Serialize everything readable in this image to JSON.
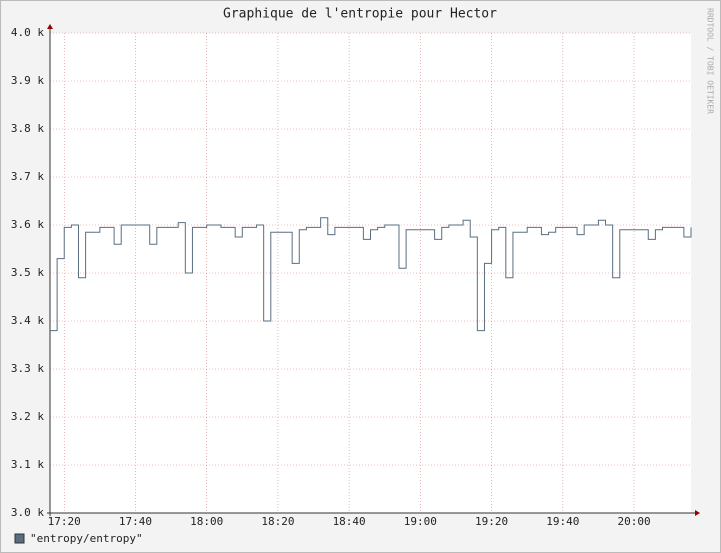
{
  "chart_data": {
    "type": "line",
    "title": "Graphique de l'entropie pour Hector",
    "watermark": "RRDTOOL / TOBI OETIKER",
    "x": [
      "17:16",
      "17:18",
      "17:20",
      "17:22",
      "17:24",
      "17:26",
      "17:28",
      "17:30",
      "17:32",
      "17:34",
      "17:36",
      "17:38",
      "17:40",
      "17:42",
      "17:44",
      "17:46",
      "17:48",
      "17:50",
      "17:52",
      "17:54",
      "17:56",
      "17:58",
      "18:00",
      "18:02",
      "18:04",
      "18:06",
      "18:08",
      "18:10",
      "18:12",
      "18:14",
      "18:16",
      "18:18",
      "18:20",
      "18:22",
      "18:24",
      "18:26",
      "18:28",
      "18:30",
      "18:32",
      "18:34",
      "18:36",
      "18:38",
      "18:40",
      "18:42",
      "18:44",
      "18:46",
      "18:48",
      "18:50",
      "18:52",
      "18:54",
      "18:56",
      "18:58",
      "19:00",
      "19:02",
      "19:04",
      "19:06",
      "19:08",
      "19:10",
      "19:12",
      "19:14",
      "19:16",
      "19:18",
      "19:20",
      "19:22",
      "19:24",
      "19:26",
      "19:28",
      "19:30",
      "19:32",
      "19:34",
      "19:36",
      "19:38",
      "19:40",
      "19:42",
      "19:44",
      "19:46",
      "19:48",
      "19:50",
      "19:52",
      "19:54",
      "19:56",
      "19:58",
      "20:00",
      "20:02",
      "20:04",
      "20:06",
      "20:08",
      "20:10",
      "20:12",
      "20:14",
      "20:16"
    ],
    "series": [
      {
        "name": "\"entropy/entropy\"",
        "color": "#5a6e80",
        "values": [
          3380,
          3530,
          3595,
          3600,
          3490,
          3585,
          3585,
          3595,
          3595,
          3560,
          3600,
          3600,
          3600,
          3600,
          3560,
          3595,
          3595,
          3595,
          3605,
          3500,
          3595,
          3595,
          3600,
          3600,
          3595,
          3595,
          3575,
          3595,
          3595,
          3600,
          3400,
          3585,
          3585,
          3585,
          3520,
          3590,
          3595,
          3595,
          3615,
          3580,
          3595,
          3595,
          3595,
          3595,
          3570,
          3590,
          3595,
          3600,
          3600,
          3510,
          3590,
          3590,
          3590,
          3590,
          3570,
          3595,
          3600,
          3600,
          3610,
          3575,
          3380,
          3520,
          3590,
          3595,
          3490,
          3585,
          3585,
          3595,
          3595,
          3580,
          3585,
          3595,
          3595,
          3595,
          3580,
          3600,
          3600,
          3610,
          3600,
          3490,
          3590,
          3590,
          3590,
          3590,
          3570,
          3590,
          3595,
          3595,
          3595,
          3575,
          3595
        ]
      }
    ],
    "xlim": [
      "17:16",
      "20:16"
    ],
    "xticks": [
      "17:20",
      "17:40",
      "18:00",
      "18:20",
      "18:40",
      "19:00",
      "19:20",
      "19:40",
      "20:00"
    ],
    "ylim": [
      3000,
      4000
    ],
    "yticks": [
      {
        "value": 3000,
        "label": "3.0 k"
      },
      {
        "value": 3100,
        "label": "3.1 k"
      },
      {
        "value": 3200,
        "label": "3.2 k"
      },
      {
        "value": 3300,
        "label": "3.3 k"
      },
      {
        "value": 3400,
        "label": "3.4 k"
      },
      {
        "value": 3500,
        "label": "3.5 k"
      },
      {
        "value": 3600,
        "label": "3.6 k"
      },
      {
        "value": 3700,
        "label": "3.7 k"
      },
      {
        "value": 3800,
        "label": "3.8 k"
      },
      {
        "value": 3900,
        "label": "3.9 k"
      },
      {
        "value": 4000,
        "label": "4.0 k"
      }
    ],
    "grid": true,
    "step": true
  }
}
